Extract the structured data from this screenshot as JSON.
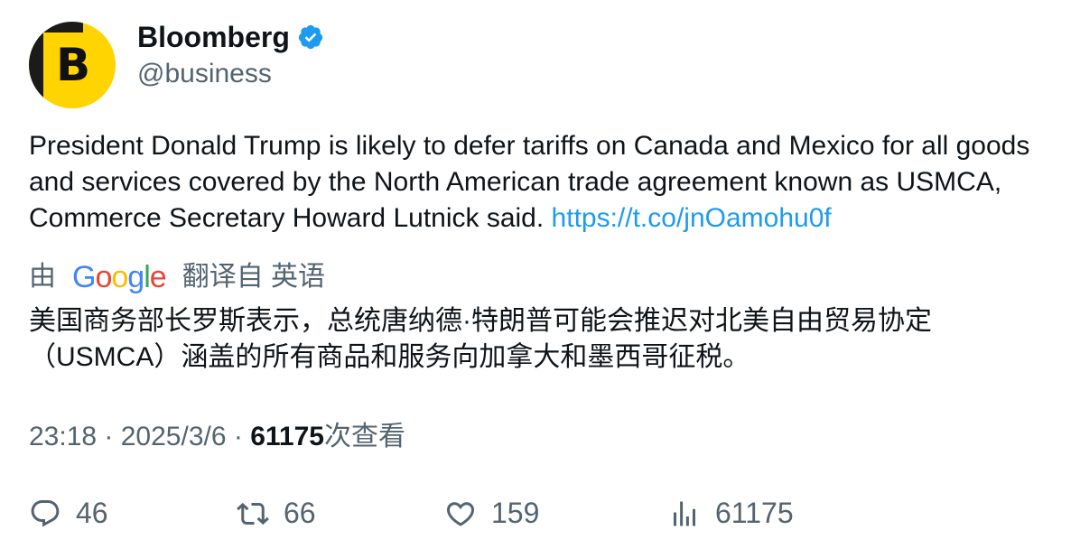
{
  "author": {
    "name": "Bloomberg",
    "handle": "@business",
    "avatar_letter": "B",
    "avatar_color": "#ffd400"
  },
  "tweet": {
    "text": "President Donald Trump is likely to defer tariffs on Canada and Mexico for all goods and services covered by the North American trade agreement known as USMCA, Commerce Secretary Howard Lutnick said. ",
    "link": "https://t.co/jnOamohu0f"
  },
  "translation": {
    "prefix": "由",
    "provider": "Google",
    "suffix": "翻译自 英语",
    "text": "美国商务部长罗斯表示，总统唐纳德·特朗普可能会推迟对北美自由贸易协定（USMCA）涵盖的所有商品和服务向加拿大和墨西哥征税。"
  },
  "meta": {
    "time": "23:18",
    "sep1": " · ",
    "date": "2025/3/6",
    "sep2": " · ",
    "views": "61175",
    "views_label": "次查看"
  },
  "actions": {
    "replies": "46",
    "retweets": "66",
    "likes": "159",
    "views": "61175"
  },
  "colors": {
    "link": "#1d9bf0",
    "secondary": "#536471",
    "verified": "#1d9bf0"
  }
}
